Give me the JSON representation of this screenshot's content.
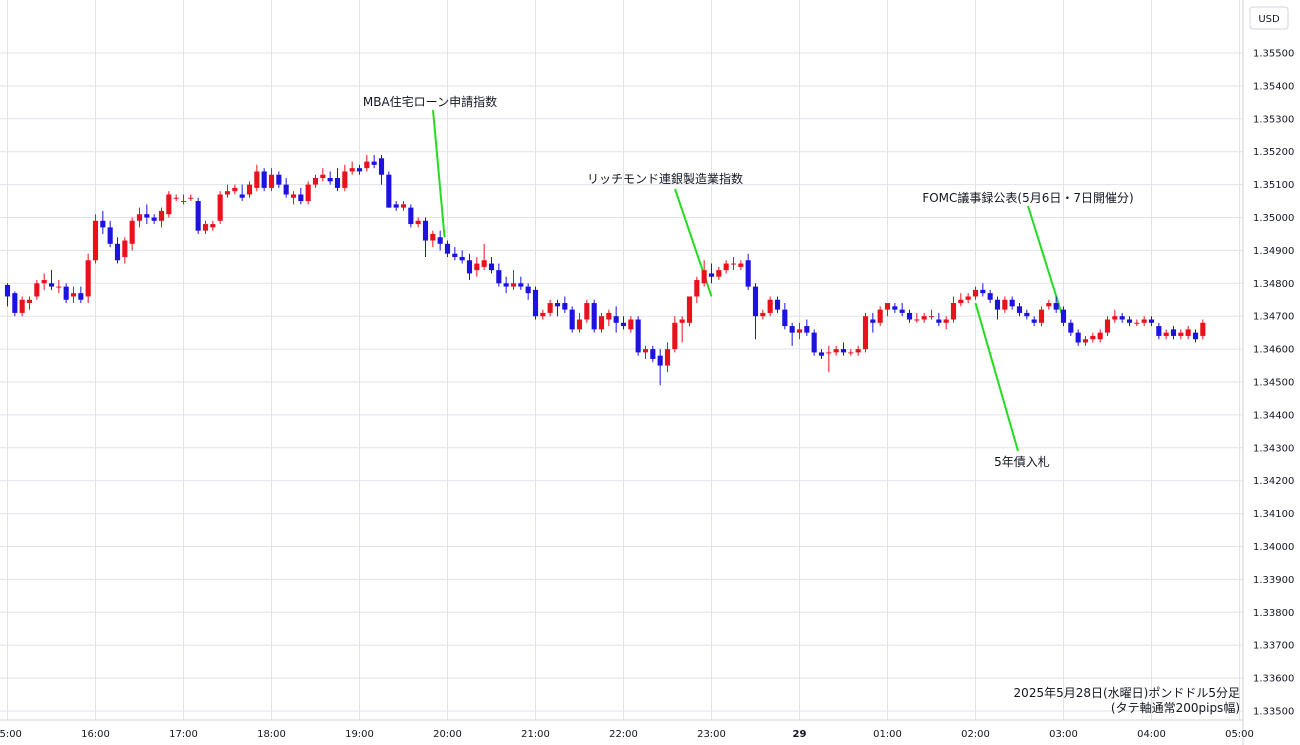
{
  "currency_label": "USD",
  "caption": {
    "line1": "2025年5月28日(水曜日)ポンドドル5分足",
    "line2": "(タテ軸通常200pips幅)"
  },
  "annotations": [
    {
      "text": "MBA住宅ローン申請指数",
      "point_time": "19:58",
      "point_price": 1.3494
    },
    {
      "text": "リッチモンド連銀製造業指数",
      "point_time": "23:00",
      "point_price": 1.3476
    },
    {
      "text": "FOMC議事録公表(5月6日・7日開催分)",
      "point_time": "03:00",
      "point_price": 1.3469
    },
    {
      "text": "5年債入札",
      "point_time": "02:00",
      "point_price": 1.3474
    }
  ],
  "colors": {
    "up": "#e8121c",
    "down": "#1d12e0",
    "grid": "#e0e3eb",
    "annotation_line": "#22dd22",
    "axis_text": "#131722"
  },
  "chart_data": {
    "type": "candlestick",
    "title": "",
    "subtitle": "",
    "xlabel": "",
    "ylabel": "",
    "y_unit": "USD",
    "ylim": [
      1.3349,
      1.3563
    ],
    "y_ticks": [
      "1.35500",
      "1.35400",
      "1.35300",
      "1.35200",
      "1.35100",
      "1.35000",
      "1.34900",
      "1.34800",
      "1.34700",
      "1.34600",
      "1.34500",
      "1.34400",
      "1.34300",
      "1.34200",
      "1.34100",
      "1.34000",
      "1.33900",
      "1.33800",
      "1.33700",
      "1.33600",
      "1.33500"
    ],
    "x_ticks": [
      "15:00",
      "16:00",
      "17:00",
      "18:00",
      "19:00",
      "20:00",
      "21:00",
      "22:00",
      "23:00",
      "29",
      "01:00",
      "02:00",
      "03:00",
      "04:00",
      "05:00"
    ],
    "grid": true,
    "candle_interval": "5m",
    "start_time": "15:00",
    "candles": [
      [
        1.34795,
        1.348,
        1.3473,
        1.3476
      ],
      [
        1.3477,
        1.34775,
        1.347,
        1.3471
      ],
      [
        1.3471,
        1.3476,
        1.347,
        1.3475
      ],
      [
        1.3474,
        1.3476,
        1.3472,
        1.3475
      ],
      [
        1.3476,
        1.3481,
        1.3475,
        1.348
      ],
      [
        1.348,
        1.3483,
        1.3478,
        1.3481
      ],
      [
        1.348,
        1.3484,
        1.3478,
        1.3479
      ],
      [
        1.3479,
        1.3481,
        1.3477,
        1.3479
      ],
      [
        1.3479,
        1.348,
        1.3474,
        1.3475
      ],
      [
        1.3476,
        1.3479,
        1.3474,
        1.3477
      ],
      [
        1.3477,
        1.3479,
        1.3474,
        1.3475
      ],
      [
        1.3476,
        1.3489,
        1.3474,
        1.3487
      ],
      [
        1.3487,
        1.3501,
        1.3486,
        1.3499
      ],
      [
        1.3499,
        1.3502,
        1.3495,
        1.3497
      ],
      [
        1.3497,
        1.3499,
        1.3491,
        1.3492
      ],
      [
        1.3492,
        1.3494,
        1.3486,
        1.3487
      ],
      [
        1.3488,
        1.3494,
        1.3486,
        1.3493
      ],
      [
        1.3492,
        1.35,
        1.349,
        1.3499
      ],
      [
        1.3499,
        1.3503,
        1.3497,
        1.3501
      ],
      [
        1.3501,
        1.3504,
        1.3498,
        1.35
      ],
      [
        1.35,
        1.3501,
        1.3498,
        1.3499
      ],
      [
        1.3499,
        1.3503,
        1.3497,
        1.3502
      ],
      [
        1.3501,
        1.3508,
        1.35,
        1.3507
      ],
      [
        1.3506,
        1.3507,
        1.3505,
        1.3506
      ],
      [
        1.3505,
        1.3507,
        1.3504,
        1.3505
      ],
      [
        1.3506,
        1.3507,
        1.3505,
        1.3506
      ],
      [
        1.3505,
        1.3506,
        1.3495,
        1.3496
      ],
      [
        1.3496,
        1.3499,
        1.3495,
        1.3498
      ],
      [
        1.3497,
        1.3499,
        1.3496,
        1.3498
      ],
      [
        1.3499,
        1.3508,
        1.3498,
        1.3507
      ],
      [
        1.3507,
        1.351,
        1.3506,
        1.3508
      ],
      [
        1.3508,
        1.351,
        1.3507,
        1.3509
      ],
      [
        1.3507,
        1.351,
        1.3505,
        1.3506
      ],
      [
        1.3507,
        1.3511,
        1.3506,
        1.351
      ],
      [
        1.3509,
        1.3516,
        1.3508,
        1.3514
      ],
      [
        1.3514,
        1.3515,
        1.3508,
        1.3509
      ],
      [
        1.3509,
        1.3515,
        1.3508,
        1.3513
      ],
      [
        1.3513,
        1.3514,
        1.3509,
        1.351
      ],
      [
        1.351,
        1.3512,
        1.3506,
        1.3507
      ],
      [
        1.3506,
        1.3508,
        1.3504,
        1.3507
      ],
      [
        1.3507,
        1.3509,
        1.3504,
        1.3505
      ],
      [
        1.3505,
        1.3511,
        1.3504,
        1.351
      ],
      [
        1.351,
        1.3513,
        1.3509,
        1.3512
      ],
      [
        1.3512,
        1.3515,
        1.3511,
        1.3513
      ],
      [
        1.3512,
        1.3514,
        1.351,
        1.3511
      ],
      [
        1.3512,
        1.3515,
        1.3508,
        1.3509
      ],
      [
        1.3509,
        1.3516,
        1.3508,
        1.3514
      ],
      [
        1.3514,
        1.3517,
        1.3513,
        1.3515
      ],
      [
        1.3515,
        1.3516,
        1.3513,
        1.3514
      ],
      [
        1.3515,
        1.3519,
        1.3514,
        1.3517
      ],
      [
        1.3517,
        1.3519,
        1.3515,
        1.3516
      ],
      [
        1.3518,
        1.3519,
        1.351,
        1.3513
      ],
      [
        1.3513,
        1.3514,
        1.3503,
        1.3503
      ],
      [
        1.3504,
        1.3505,
        1.3502,
        1.3503
      ],
      [
        1.3503,
        1.3505,
        1.3502,
        1.3504
      ],
      [
        1.3503,
        1.3504,
        1.3497,
        1.3498
      ],
      [
        1.3498,
        1.35,
        1.3497,
        1.3499
      ],
      [
        1.3499,
        1.35,
        1.3488,
        1.3493
      ],
      [
        1.3493,
        1.3496,
        1.3491,
        1.3495
      ],
      [
        1.3494,
        1.3496,
        1.349,
        1.3492
      ],
      [
        1.3492,
        1.3493,
        1.3488,
        1.3489
      ],
      [
        1.3489,
        1.3491,
        1.3487,
        1.3488
      ],
      [
        1.3488,
        1.349,
        1.3486,
        1.3487
      ],
      [
        1.3487,
        1.3489,
        1.3481,
        1.3483
      ],
      [
        1.3484,
        1.3488,
        1.3482,
        1.3486
      ],
      [
        1.3485,
        1.3492,
        1.3484,
        1.3487
      ],
      [
        1.3486,
        1.3488,
        1.3483,
        1.3484
      ],
      [
        1.3484,
        1.3486,
        1.3479,
        1.348
      ],
      [
        1.348,
        1.3482,
        1.3477,
        1.3479
      ],
      [
        1.3479,
        1.3484,
        1.3478,
        1.348
      ],
      [
        1.348,
        1.3482,
        1.3478,
        1.3479
      ],
      [
        1.3479,
        1.348,
        1.3475,
        1.3477
      ],
      [
        1.3478,
        1.3479,
        1.3469,
        1.347
      ],
      [
        1.347,
        1.3472,
        1.3469,
        1.3471
      ],
      [
        1.3471,
        1.3475,
        1.347,
        1.3474
      ],
      [
        1.3474,
        1.3475,
        1.347,
        1.3473
      ],
      [
        1.3474,
        1.3476,
        1.3471,
        1.3472
      ],
      [
        1.3472,
        1.3473,
        1.3465,
        1.3466
      ],
      [
        1.3466,
        1.3471,
        1.3465,
        1.3469
      ],
      [
        1.3469,
        1.3475,
        1.3468,
        1.3474
      ],
      [
        1.3474,
        1.3475,
        1.3465,
        1.3466
      ],
      [
        1.3466,
        1.3471,
        1.3465,
        1.347
      ],
      [
        1.3469,
        1.3472,
        1.3467,
        1.3471
      ],
      [
        1.347,
        1.3473,
        1.3465,
        1.3468
      ],
      [
        1.3468,
        1.347,
        1.3466,
        1.3467
      ],
      [
        1.3466,
        1.347,
        1.3465,
        1.3469
      ],
      [
        1.3469,
        1.347,
        1.3458,
        1.3459
      ],
      [
        1.3459,
        1.3461,
        1.3457,
        1.346
      ],
      [
        1.346,
        1.3461,
        1.3456,
        1.3457
      ],
      [
        1.3458,
        1.346,
        1.3449,
        1.3455
      ],
      [
        1.3455,
        1.3462,
        1.3453,
        1.346
      ],
      [
        1.346,
        1.347,
        1.3459,
        1.3468
      ],
      [
        1.3468,
        1.347,
        1.3462,
        1.3469
      ],
      [
        1.3468,
        1.3476,
        1.3467,
        1.3476
      ],
      [
        1.3476,
        1.3482,
        1.3474,
        1.3481
      ],
      [
        1.348,
        1.3487,
        1.3479,
        1.3484
      ],
      [
        1.3483,
        1.3486,
        1.348,
        1.3482
      ],
      [
        1.3482,
        1.3485,
        1.3481,
        1.3484
      ],
      [
        1.3484,
        1.3487,
        1.3483,
        1.3486
      ],
      [
        1.3486,
        1.3488,
        1.3484,
        1.3486
      ],
      [
        1.3485,
        1.3487,
        1.3484,
        1.3486
      ],
      [
        1.3487,
        1.3489,
        1.3478,
        1.3479
      ],
      [
        1.3479,
        1.348,
        1.3463,
        1.347
      ],
      [
        1.347,
        1.3472,
        1.3469,
        1.3471
      ],
      [
        1.3471,
        1.3476,
        1.347,
        1.3475
      ],
      [
        1.3475,
        1.3476,
        1.3471,
        1.3472
      ],
      [
        1.3472,
        1.3474,
        1.3466,
        1.3467
      ],
      [
        1.3467,
        1.3468,
        1.3461,
        1.3465
      ],
      [
        1.3465,
        1.3468,
        1.3463,
        1.3466
      ],
      [
        1.3467,
        1.3469,
        1.3464,
        1.3465
      ],
      [
        1.3465,
        1.3466,
        1.3458,
        1.3459
      ],
      [
        1.3459,
        1.346,
        1.3457,
        1.3458
      ],
      [
        1.3459,
        1.3461,
        1.3453,
        1.3459
      ],
      [
        1.3459,
        1.3461,
        1.3458,
        1.346
      ],
      [
        1.346,
        1.3462,
        1.3458,
        1.3459
      ],
      [
        1.3459,
        1.346,
        1.3458,
        1.3459
      ],
      [
        1.3459,
        1.3461,
        1.3458,
        1.346
      ],
      [
        1.346,
        1.3471,
        1.3459,
        1.347
      ],
      [
        1.3469,
        1.3471,
        1.3465,
        1.3468
      ],
      [
        1.3468,
        1.3473,
        1.3467,
        1.3472
      ],
      [
        1.3472,
        1.3474,
        1.347,
        1.3474
      ],
      [
        1.3473,
        1.3474,
        1.3471,
        1.3472
      ],
      [
        1.3472,
        1.3474,
        1.347,
        1.3471
      ],
      [
        1.3471,
        1.3472,
        1.3468,
        1.3469
      ],
      [
        1.3469,
        1.3471,
        1.3468,
        1.3469
      ],
      [
        1.3469,
        1.3471,
        1.3468,
        1.347
      ],
      [
        1.347,
        1.3472,
        1.3469,
        1.347
      ],
      [
        1.3469,
        1.3471,
        1.3467,
        1.3468
      ],
      [
        1.3468,
        1.347,
        1.3466,
        1.3469
      ],
      [
        1.3469,
        1.3476,
        1.3468,
        1.3474
      ],
      [
        1.3474,
        1.3477,
        1.3473,
        1.3475
      ],
      [
        1.3475,
        1.3477,
        1.3474,
        1.3476
      ],
      [
        1.3476,
        1.3479,
        1.3475,
        1.3478
      ],
      [
        1.3478,
        1.348,
        1.3476,
        1.3477
      ],
      [
        1.3477,
        1.3478,
        1.3474,
        1.3475
      ],
      [
        1.3475,
        1.3476,
        1.3469,
        1.3472
      ],
      [
        1.3472,
        1.3476,
        1.3471,
        1.3475
      ],
      [
        1.3475,
        1.3476,
        1.3472,
        1.3473
      ],
      [
        1.3473,
        1.3474,
        1.347,
        1.3471
      ],
      [
        1.3471,
        1.3472,
        1.3469,
        1.347
      ],
      [
        1.3469,
        1.347,
        1.3467,
        1.3468
      ],
      [
        1.3468,
        1.3473,
        1.3467,
        1.3472
      ],
      [
        1.3473,
        1.3475,
        1.3472,
        1.3474
      ],
      [
        1.3474,
        1.3476,
        1.3471,
        1.3472
      ],
      [
        1.3472,
        1.3473,
        1.3467,
        1.3468
      ],
      [
        1.3468,
        1.3469,
        1.3464,
        1.3465
      ],
      [
        1.3465,
        1.3466,
        1.3461,
        1.3462
      ],
      [
        1.3462,
        1.3464,
        1.3461,
        1.3463
      ],
      [
        1.3463,
        1.3465,
        1.3462,
        1.3464
      ],
      [
        1.3463,
        1.3466,
        1.3462,
        1.3465
      ],
      [
        1.3465,
        1.347,
        1.3464,
        1.3469
      ],
      [
        1.3469,
        1.3472,
        1.3468,
        1.347
      ],
      [
        1.347,
        1.3471,
        1.3468,
        1.3469
      ],
      [
        1.3469,
        1.347,
        1.3467,
        1.3468
      ],
      [
        1.3468,
        1.3469,
        1.3467,
        1.3468
      ],
      [
        1.3468,
        1.347,
        1.3467,
        1.3469
      ],
      [
        1.3469,
        1.347,
        1.3467,
        1.3468
      ],
      [
        1.3467,
        1.3468,
        1.3463,
        1.3464
      ],
      [
        1.3464,
        1.3466,
        1.3463,
        1.3465
      ],
      [
        1.3466,
        1.3467,
        1.3463,
        1.3464
      ],
      [
        1.3464,
        1.3466,
        1.3463,
        1.3465
      ],
      [
        1.3464,
        1.3467,
        1.3463,
        1.3466
      ],
      [
        1.3465,
        1.3466,
        1.3462,
        1.3463
      ],
      [
        1.3464,
        1.3469,
        1.3463,
        1.3468
      ]
    ]
  }
}
